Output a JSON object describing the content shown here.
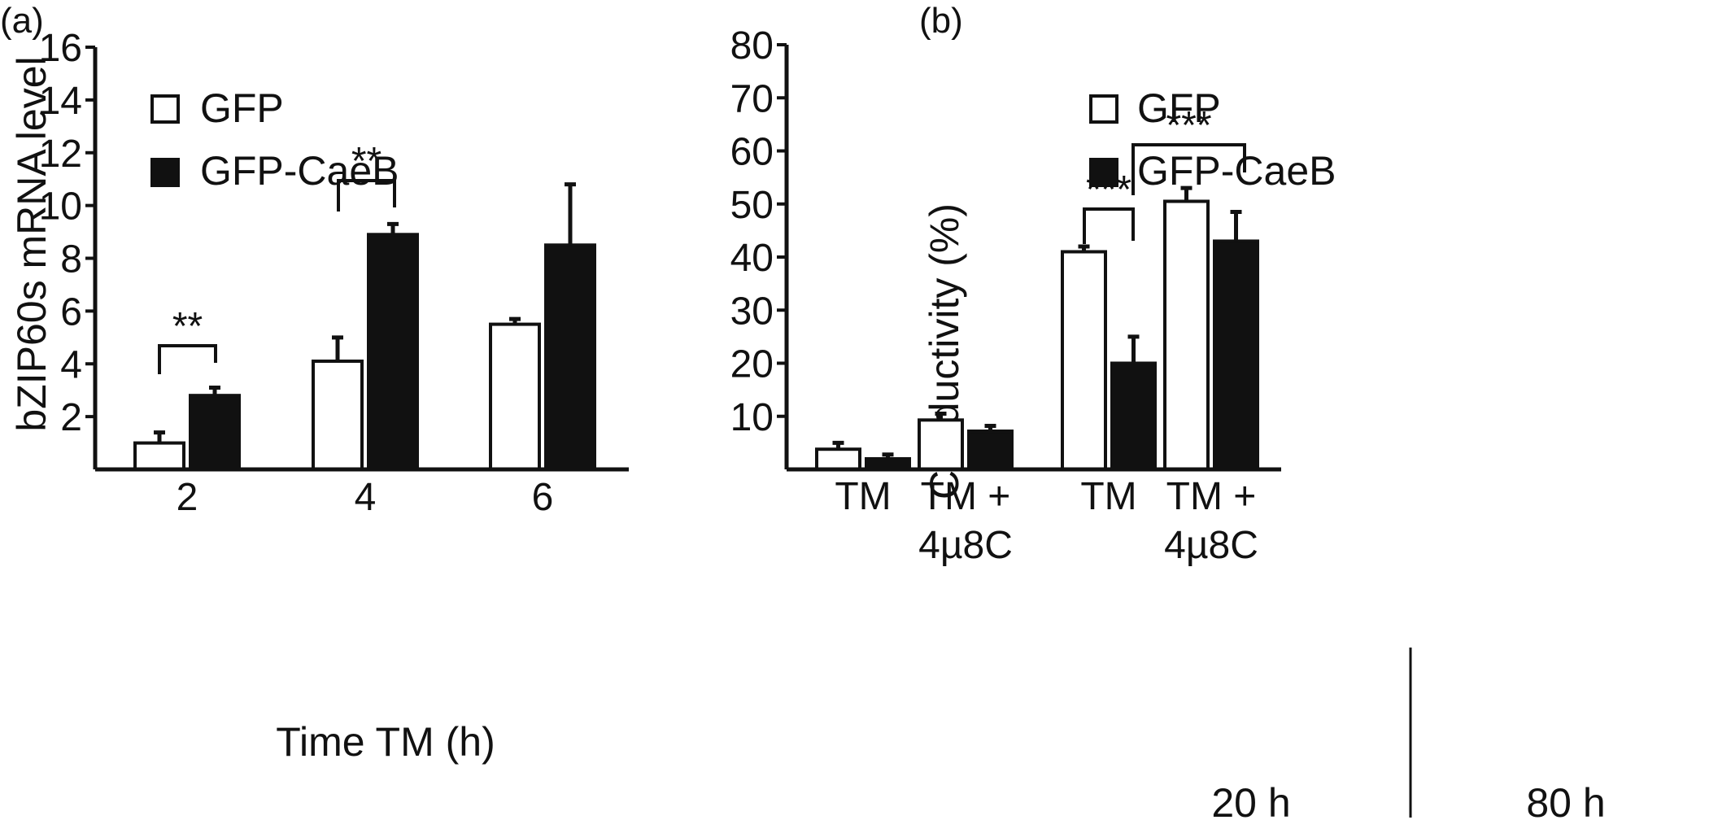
{
  "panels": [
    {
      "label": "(a)"
    },
    {
      "label": "(b)"
    }
  ],
  "colors": {
    "GFP": "#ffffff",
    "GFP-CaeB": "#111111",
    "stroke": "#111111"
  },
  "chart_data": [
    {
      "type": "bar",
      "panel": "(a)",
      "xlabel": "Time TM (h)",
      "ylabel": "bZIP60s mRNA level",
      "ylim": [
        0,
        16
      ],
      "yticks": [
        "2",
        "4",
        "6",
        "8",
        "10",
        "12",
        "14",
        "16"
      ],
      "categories": [
        "2",
        "4",
        "6"
      ],
      "series": [
        {
          "name": "GFP",
          "values": [
            1.0,
            4.1,
            5.5
          ],
          "errors": [
            0.4,
            0.9,
            0.2
          ]
        },
        {
          "name": "GFP-CaeB",
          "values": [
            2.8,
            8.9,
            8.5
          ],
          "errors": [
            0.3,
            0.4,
            2.3
          ]
        }
      ],
      "legend": {
        "position": "top-left",
        "entries": [
          "GFP",
          "GFP-CaeB"
        ]
      },
      "significance": [
        {
          "category_index": 0,
          "label": "**"
        },
        {
          "category_index": 1,
          "label": "**"
        }
      ]
    },
    {
      "type": "bar",
      "panel": "(b)",
      "xlabel": "",
      "ylabel": "Conductivity (%)",
      "ylim": [
        0,
        80
      ],
      "yticks": [
        "10",
        "20",
        "30",
        "40",
        "50",
        "60",
        "70",
        "80"
      ],
      "categories": [
        "TM",
        "TM + 4µ8C",
        "TM",
        "TM + 4µ8C"
      ],
      "category_lines": [
        [
          "TM"
        ],
        [
          "TM +",
          "4µ8C"
        ],
        [
          "TM"
        ],
        [
          "TM +",
          "4µ8C"
        ]
      ],
      "groups": [
        "20 h",
        "80 h"
      ],
      "series": [
        {
          "name": "GFP",
          "values": [
            3.8,
            9.3,
            41.0,
            50.5
          ],
          "errors": [
            1.2,
            1.2,
            1.0,
            2.5
          ]
        },
        {
          "name": "GFP-CaeB",
          "values": [
            2.0,
            7.2,
            20.0,
            43.0
          ],
          "errors": [
            0.8,
            1.0,
            5.0,
            5.5
          ]
        }
      ],
      "legend": {
        "position": "top-left",
        "entries": [
          "GFP",
          "GFP-CaeB"
        ]
      },
      "significance": [
        {
          "label": "***",
          "between": "GFP and GFP-CaeB, 80 h TM"
        },
        {
          "label": "***",
          "between": "GFP-CaeB 80 h TM and TM + 4µ8C"
        }
      ]
    }
  ]
}
